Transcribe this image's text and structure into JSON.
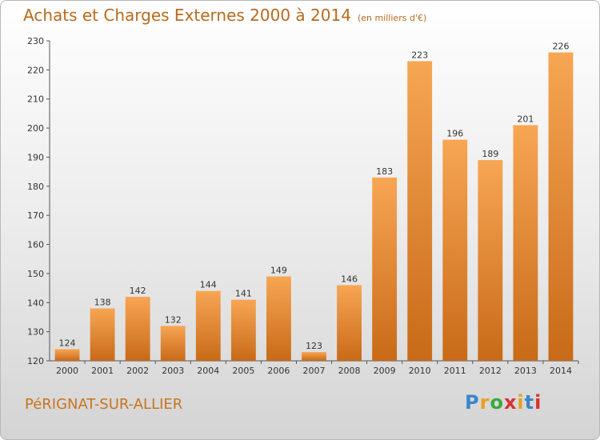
{
  "title": "Achats et Charges Externes 2000 à 2014",
  "unit_note": "(en milliers d'€)",
  "commune": "PéRIGNAT-SUR-ALLIER",
  "logo": {
    "letters": [
      "P",
      "r",
      "o",
      "x",
      "i",
      "t",
      "i"
    ],
    "colors": [
      "#3a86c8",
      "#e8a020",
      "#3aa840",
      "#d83030",
      "#e8a020",
      "#3a86c8",
      "#d83030"
    ]
  },
  "colors": {
    "bar_light": "#f7a654",
    "bar_dark": "#c86a18",
    "axis": "#555555",
    "grid": "#d0d0d0"
  },
  "chart_data": {
    "type": "bar",
    "categories": [
      "2000",
      "2001",
      "2002",
      "2003",
      "2004",
      "2005",
      "2006",
      "2007",
      "2008",
      "2009",
      "2010",
      "2011",
      "2012",
      "2013",
      "2014"
    ],
    "values": [
      124,
      138,
      142,
      132,
      144,
      141,
      149,
      123,
      146,
      183,
      223,
      196,
      189,
      201,
      226
    ],
    "title": "Achats et Charges Externes 2000 à 2014",
    "xlabel": "",
    "ylabel": "",
    "ylim": [
      120,
      230
    ],
    "yticks": [
      120,
      130,
      140,
      150,
      160,
      170,
      180,
      190,
      200,
      210,
      220,
      230
    ],
    "grid": false,
    "data_labels": true
  }
}
